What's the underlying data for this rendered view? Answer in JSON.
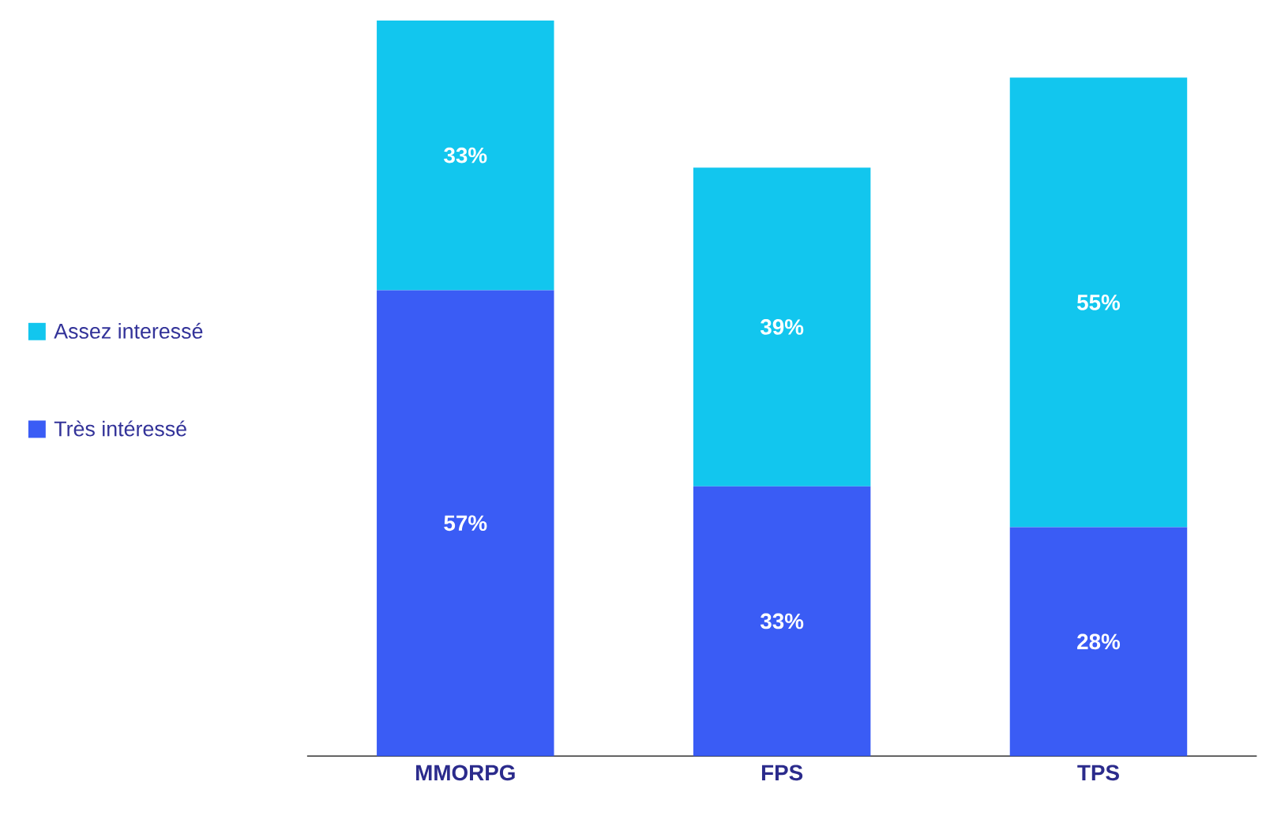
{
  "chart_data": {
    "type": "bar",
    "stacked": true,
    "categories": [
      "MMORPG",
      "FPS",
      "TPS"
    ],
    "series": [
      {
        "name": "Très intéressé",
        "color": "#3a5cf5",
        "values": [
          57,
          33,
          28
        ],
        "value_labels": [
          "57%",
          "33%",
          "28%"
        ]
      },
      {
        "name": "Assez interessé",
        "color": "#12c6ee",
        "values": [
          33,
          39,
          55
        ],
        "value_labels": [
          "33%",
          "39%",
          "55%"
        ]
      }
    ],
    "ylim": [
      0,
      90
    ],
    "tick_labels": "x",
    "legend": "left"
  }
}
